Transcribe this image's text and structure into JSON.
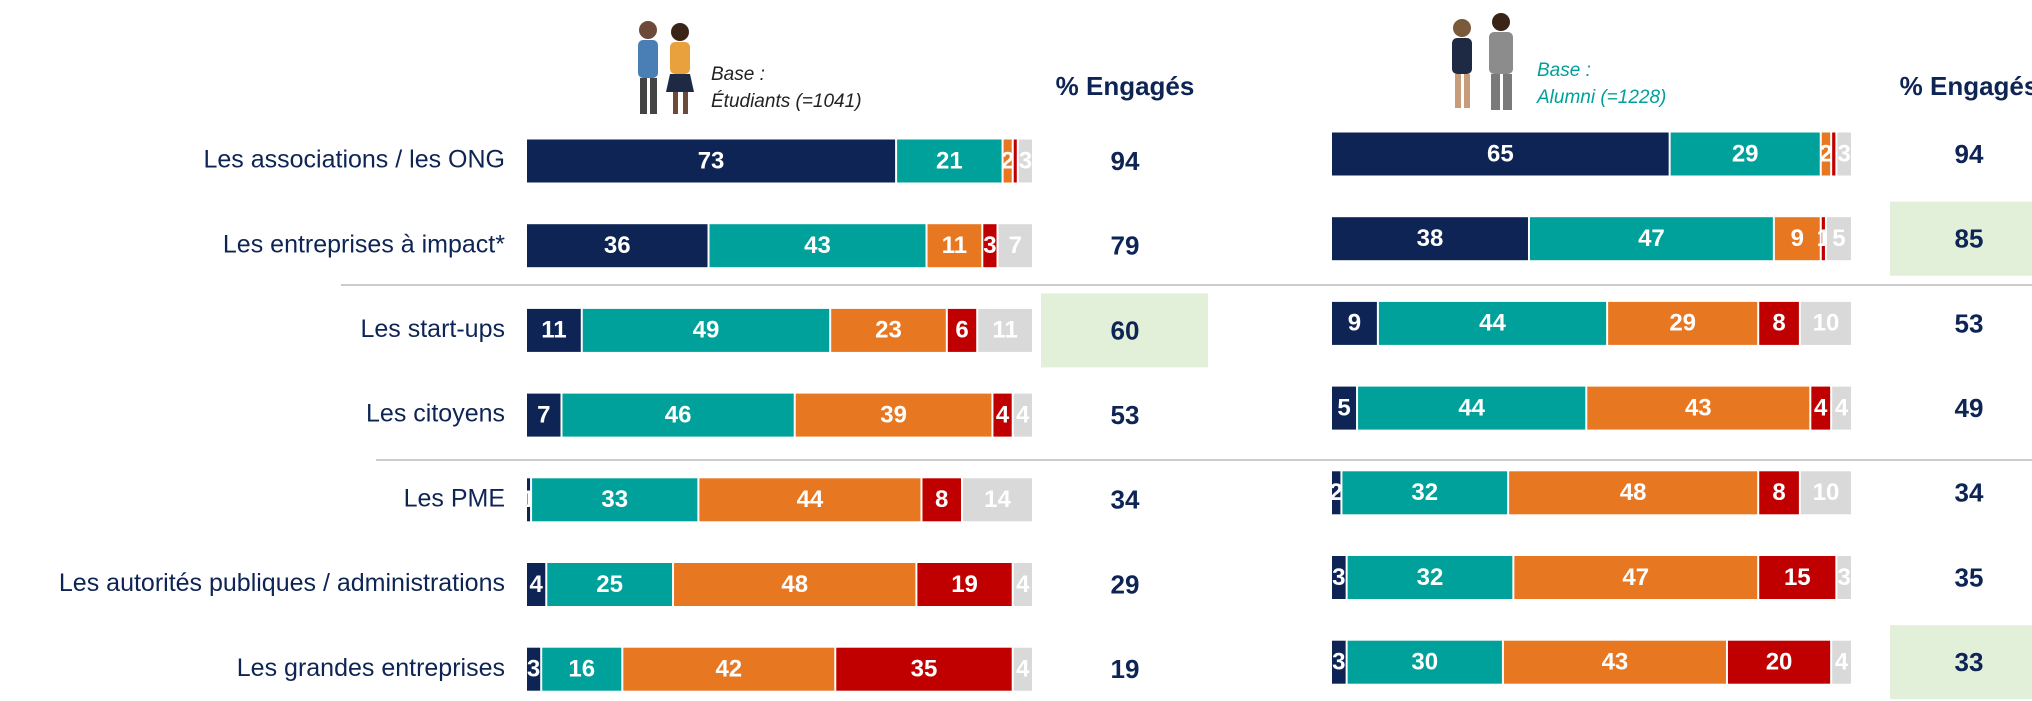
{
  "chart_data": [
    {
      "type": "bar",
      "orientation": "horizontal",
      "stacked": true,
      "base": [
        "Base :",
        "Étudiants (=1041)"
      ],
      "categories": [
        "Les associations / les ONG",
        "Les entreprises à impact*",
        "Les start-ups",
        "Les citoyens",
        "Les PME",
        "Les autorités publiques / administrations",
        "Les grandes entreprises"
      ],
      "xlim": [
        0,
        100
      ],
      "series": [
        {
          "color": "#0d2454",
          "values": [
            73,
            36,
            11,
            7,
            1,
            4,
            3
          ]
        },
        {
          "color": "#00a19a",
          "values": [
            21,
            43,
            49,
            46,
            33,
            25,
            16
          ]
        },
        {
          "color": "#e87722",
          "values": [
            2,
            11,
            23,
            39,
            44,
            48,
            42
          ]
        },
        {
          "color": "#c00000",
          "values": [
            1,
            3,
            6,
            4,
            8,
            19,
            35
          ],
          "value_labels": [
            null,
            "3",
            "6",
            "4",
            "8",
            "19",
            "35"
          ]
        },
        {
          "color": "#d9d9d9",
          "values": [
            3,
            7,
            11,
            4,
            14,
            4,
            4
          ]
        }
      ],
      "engaged": {
        "header": "% Engagés",
        "values": [
          94,
          79,
          60,
          53,
          34,
          29,
          19
        ],
        "highlighted": [
          2
        ],
        "highlight_color": "#e2f0d9"
      }
    },
    {
      "type": "bar",
      "orientation": "horizontal",
      "stacked": true,
      "base": [
        "Base :",
        "Alumni (=1228)"
      ],
      "xlim": [
        0,
        100
      ],
      "series": [
        {
          "color": "#0d2454",
          "values": [
            65,
            38,
            9,
            5,
            2,
            3,
            3
          ]
        },
        {
          "color": "#00a19a",
          "values": [
            29,
            47,
            44,
            44,
            32,
            32,
            30
          ]
        },
        {
          "color": "#e87722",
          "values": [
            2,
            9,
            29,
            43,
            48,
            47,
            43
          ]
        },
        {
          "color": "#c00000",
          "values": [
            1,
            1,
            8,
            4,
            8,
            15,
            20
          ],
          "value_labels": [
            null,
            "1",
            "8",
            "4",
            "8",
            "15",
            "20"
          ]
        },
        {
          "color": "#d9d9d9",
          "values": [
            3,
            5,
            10,
            4,
            10,
            3,
            4
          ]
        }
      ],
      "engaged": {
        "header": "% Engagés",
        "values": [
          94,
          85,
          53,
          49,
          34,
          35,
          33
        ],
        "highlighted": [
          1,
          6
        ],
        "highlight_color": "#e2f0d9"
      }
    }
  ]
}
